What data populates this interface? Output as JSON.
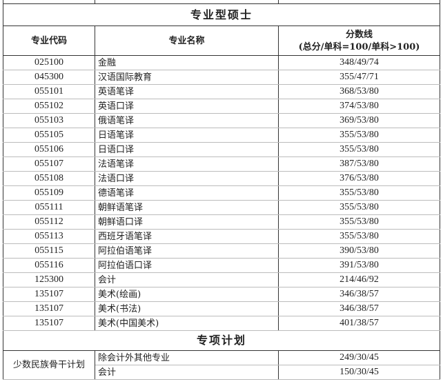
{
  "section_professional": "专业型硕士",
  "headers": {
    "code": "专业代码",
    "name": "专业名称",
    "score_line1": "分数线",
    "score_line2": "(总分/单科=100/单科>100)"
  },
  "rows": [
    {
      "code": "025100",
      "name": "金融",
      "score": "348/49/74"
    },
    {
      "code": "045300",
      "name": "汉语国际教育",
      "score": "355/47/71"
    },
    {
      "code": "055101",
      "name": "英语笔译",
      "score": "368/53/80"
    },
    {
      "code": "055102",
      "name": "英语口译",
      "score": "374/53/80"
    },
    {
      "code": "055103",
      "name": "俄语笔译",
      "score": "369/53/80"
    },
    {
      "code": "055105",
      "name": "日语笔译",
      "score": "355/53/80"
    },
    {
      "code": "055106",
      "name": "日语口译",
      "score": "355/53/80"
    },
    {
      "code": "055107",
      "name": "法语笔译",
      "score": "387/53/80"
    },
    {
      "code": "055108",
      "name": "法语口译",
      "score": "376/53/80"
    },
    {
      "code": "055109",
      "name": "德语笔译",
      "score": "355/53/80"
    },
    {
      "code": "055111",
      "name": "朝鲜语笔译",
      "score": "355/53/80"
    },
    {
      "code": "055112",
      "name": "朝鲜语口译",
      "score": "355/53/80"
    },
    {
      "code": "055113",
      "name": "西班牙语笔译",
      "score": "355/53/80"
    },
    {
      "code": "055115",
      "name": "阿拉伯语笔译",
      "score": "390/53/80"
    },
    {
      "code": "055116",
      "name": "阿拉伯语口译",
      "score": "391/53/80"
    },
    {
      "code": "125300",
      "name": "会计",
      "score": "214/46/92"
    },
    {
      "code": "135107",
      "name": "美术(绘画)",
      "score": "346/38/57"
    },
    {
      "code": "135107",
      "name": "美术(书法)",
      "score": "346/38/57"
    },
    {
      "code": "135107",
      "name": "美术(中国美术)",
      "score": "401/38/57"
    }
  ],
  "section_special": "专项计划",
  "special": {
    "group": "少数民族骨干计划",
    "rows": [
      {
        "name": "除会计外其他专业",
        "score": "249/30/45"
      },
      {
        "name": "会计",
        "score": "150/30/45"
      }
    ]
  }
}
